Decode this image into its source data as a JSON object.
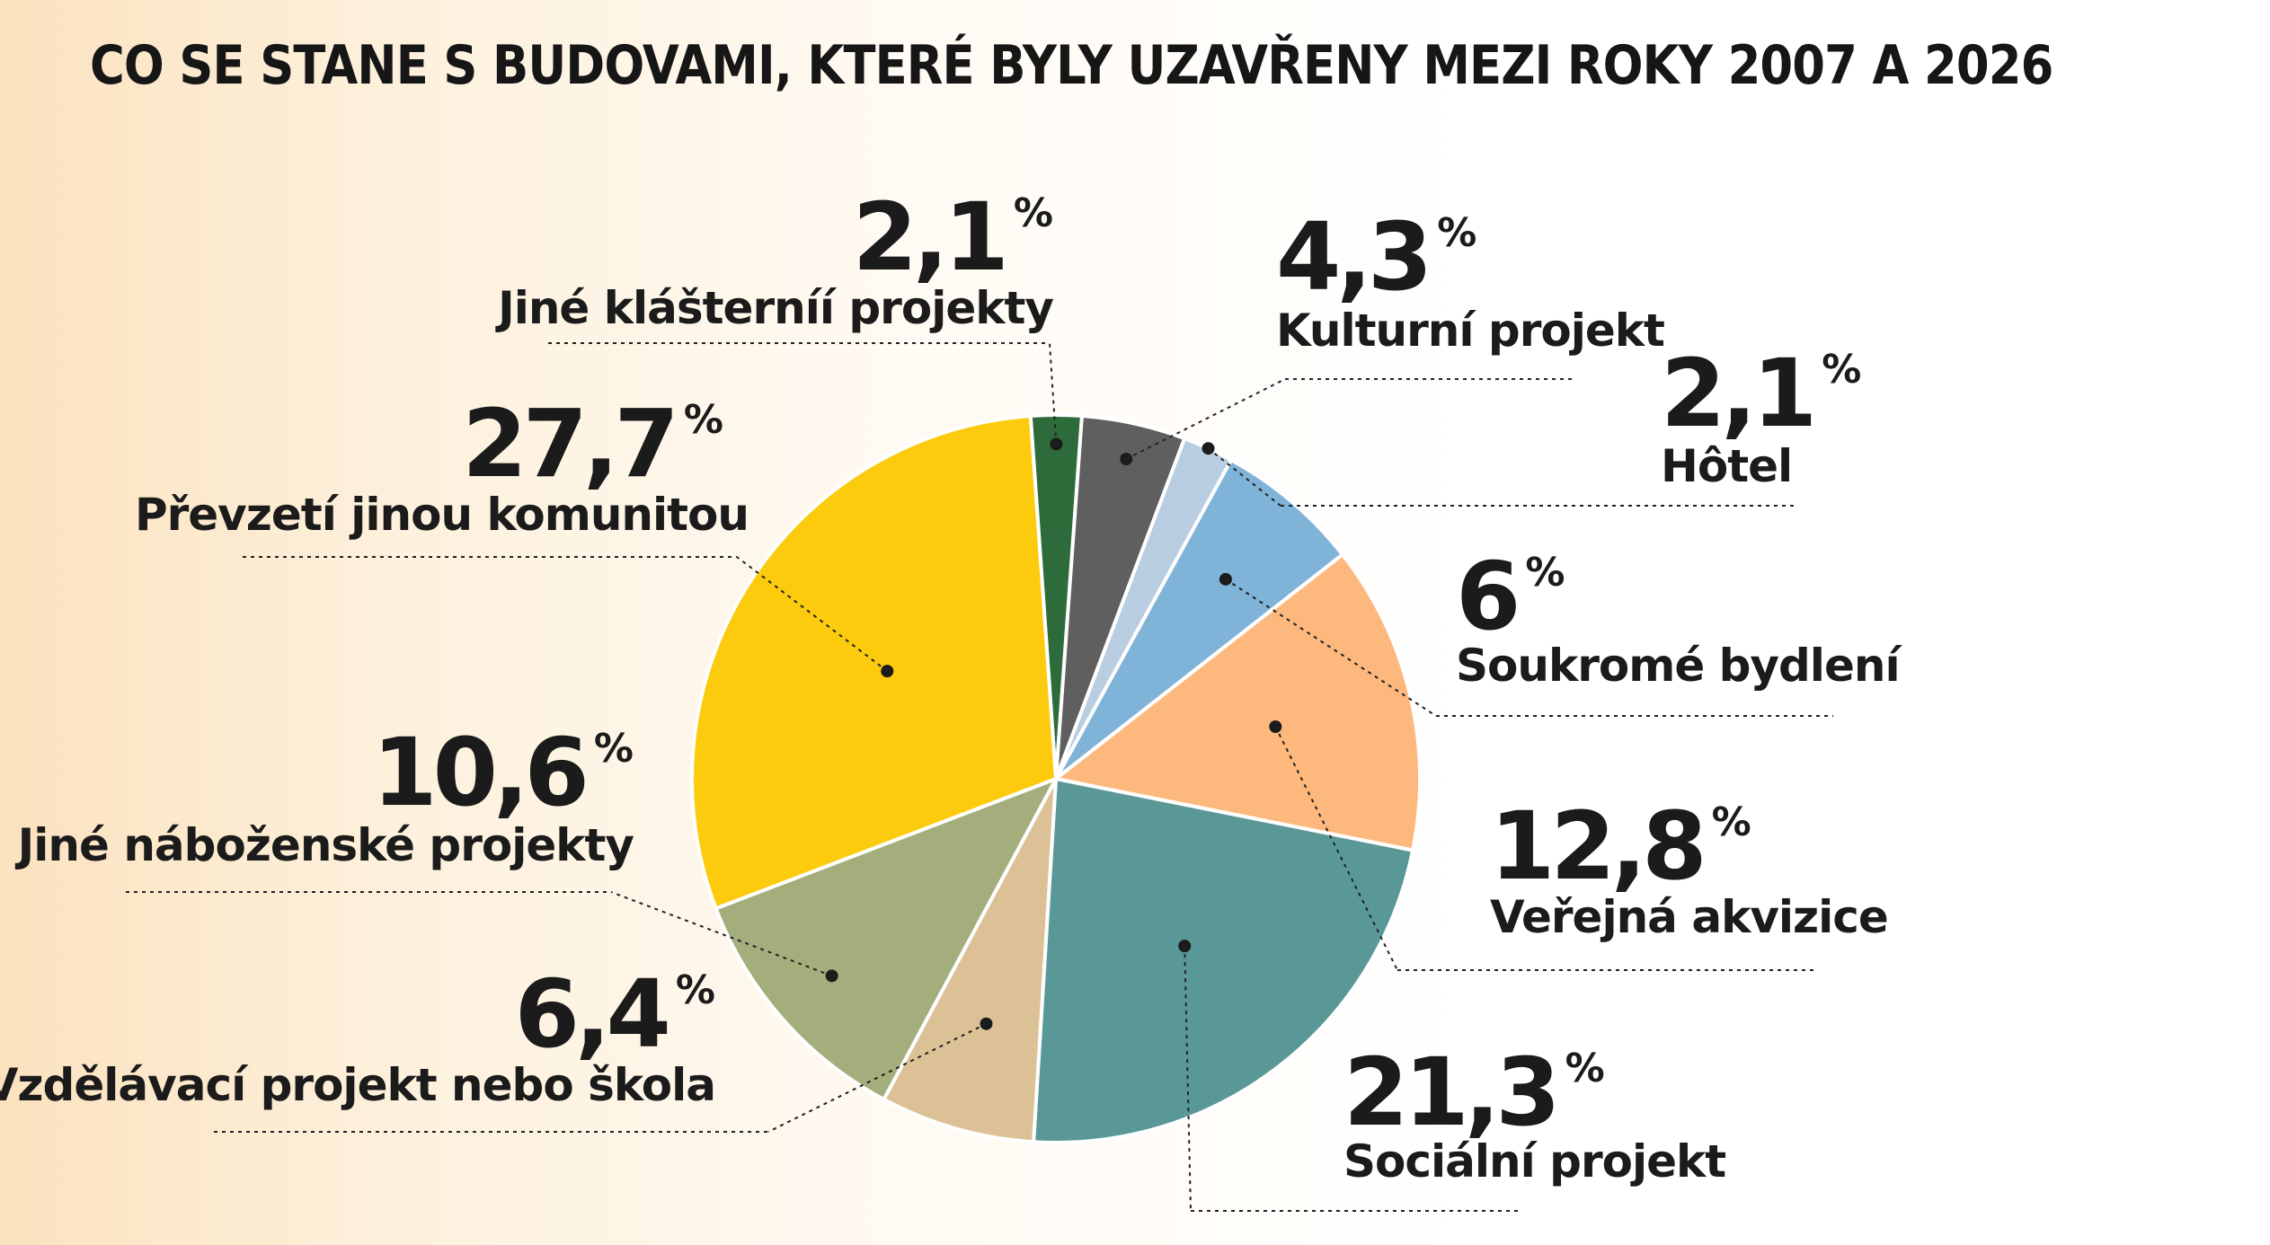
{
  "title": "CO SE STANE S BUDOVAMI, KTERÉ BYLY UZAVŘENY MEZI ROKY 2007 A 2026",
  "chart_data": {
    "type": "pie",
    "title": "CO SE STANE S BUDOVAMI, KTERÉ BYLY UZAVŘENY MEZI ROKY 2007 A 2026",
    "unit": "%",
    "slices": [
      {
        "label": "Jiné klášterníí projekty",
        "value": 2.1,
        "display": "2,1",
        "color": "#2e6b3a"
      },
      {
        "label": "Kulturní projekt",
        "value": 4.3,
        "display": "4,3",
        "color": "#5f5f5f"
      },
      {
        "label": "Hôtel",
        "value": 2.1,
        "display": "2,1",
        "color": "#b8cde0"
      },
      {
        "label": "Soukromé bydlení",
        "value": 6,
        "display": "6",
        "color": "#7fb3d8"
      },
      {
        "label": "Veřejná akvizice",
        "value": 12.8,
        "display": "12,8",
        "color": "#fdb97d"
      },
      {
        "label": "Sociální projekt",
        "value": 21.3,
        "display": "21,3",
        "color": "#5a9898"
      },
      {
        "label": "Vzdělávací projekt nebo škola",
        "value": 6.4,
        "display": "6,4",
        "color": "#dcc197"
      },
      {
        "label": "Jiné náboženské projekty",
        "value": 10.6,
        "display": "10,6",
        "color": "#a3ae7c"
      },
      {
        "label": "Převzetí jinou komunitou",
        "value": 27.7,
        "display": "27,7",
        "color": "#fccb0d"
      }
    ]
  }
}
